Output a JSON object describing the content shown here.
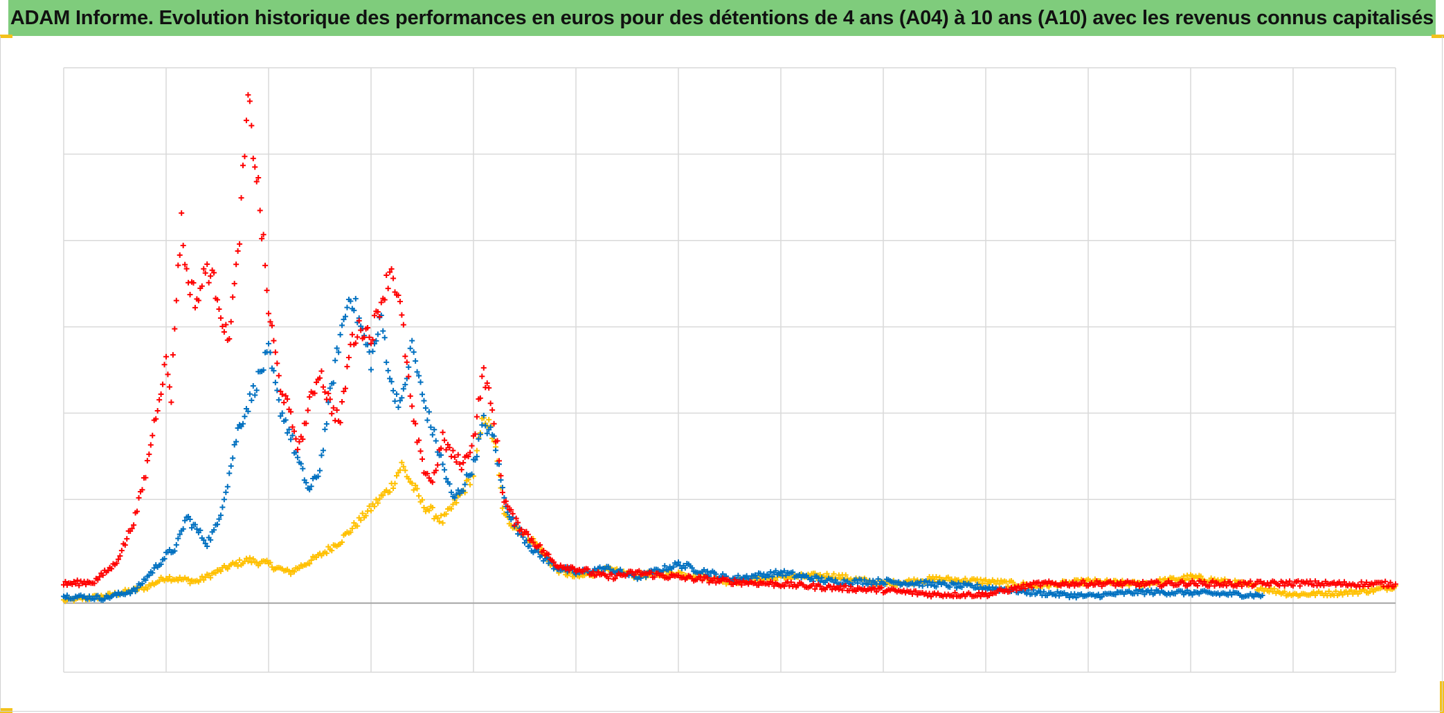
{
  "title": "ADAM Informe. Evolution historique des performances en euros pour des détentions de 4 ans (A04) à 10 ans (A10) avec les revenus connus capitalisés",
  "colors": {
    "header_bg": "#7fcc7c",
    "gridline": "#d9d9d9",
    "zero_line": "#a6a6a6",
    "corner_accent": "#f3c21b"
  },
  "chart_data": {
    "type": "scatter",
    "title": "ADAM Informe. Evolution historique des performances en euros pour des détentions de 4 ans (A04) à 10 ans (A10) avec les revenus connus capitalisés",
    "xlabel": "",
    "ylabel": "",
    "x_range": [
      0,
      13
    ],
    "y_range": [
      -0.8,
      6.2
    ],
    "x_gridlines": 13,
    "y_gridlines": [
      -0.8,
      0,
      1.2,
      2.2,
      3.2,
      4.2,
      5.2,
      6.2
    ],
    "grid": true,
    "legend": "none",
    "marker": "plus",
    "series": [
      {
        "color": "#ffc000",
        "x": [
          0,
          0.4,
          0.8,
          1.0,
          1.3,
          1.6,
          1.8,
          2.0,
          2.2,
          2.5,
          2.7,
          3.0,
          3.2,
          3.3,
          3.5,
          3.7,
          3.9,
          4.0,
          4.1,
          4.2,
          4.3,
          4.4,
          4.6,
          4.8,
          5.0,
          5.3,
          5.6,
          6.0,
          6.5,
          7.0,
          7.5,
          8.0,
          8.5,
          9.0,
          9.5,
          10.0,
          10.5,
          11.0,
          11.5,
          12.0,
          12.5,
          12.8,
          13.0
        ],
        "y": [
          0.03,
          0.08,
          0.18,
          0.3,
          0.25,
          0.42,
          0.5,
          0.45,
          0.35,
          0.55,
          0.72,
          1.1,
          1.35,
          1.6,
          1.15,
          0.95,
          1.3,
          1.5,
          2.2,
          1.9,
          1.0,
          0.9,
          0.7,
          0.4,
          0.3,
          0.38,
          0.32,
          0.35,
          0.25,
          0.3,
          0.32,
          0.22,
          0.28,
          0.25,
          0.2,
          0.25,
          0.22,
          0.3,
          0.22,
          0.1,
          0.12,
          0.15,
          0.2
        ]
      },
      {
        "color": "#0070c0",
        "x": [
          0,
          0.4,
          0.7,
          0.85,
          1.0,
          1.1,
          1.2,
          1.3,
          1.4,
          1.5,
          1.6,
          1.7,
          1.8,
          1.9,
          2.0,
          2.1,
          2.2,
          2.3,
          2.4,
          2.5,
          2.6,
          2.7,
          2.8,
          3.0,
          3.1,
          3.2,
          3.3,
          3.4,
          3.5,
          3.6,
          3.7,
          3.8,
          3.9,
          4.0,
          4.1,
          4.2,
          4.3,
          4.4,
          4.6,
          4.8,
          5.0,
          5.3,
          5.6,
          6.0,
          6.5,
          7.0,
          7.5,
          8.0,
          8.5,
          9.0,
          9.5,
          10.0,
          10.5,
          11.0,
          11.5,
          11.7
        ],
        "y": [
          0.08,
          0.06,
          0.15,
          0.35,
          0.55,
          0.65,
          1.0,
          0.85,
          0.7,
          0.9,
          1.4,
          2.0,
          2.3,
          2.6,
          2.9,
          2.3,
          2.0,
          1.6,
          1.3,
          1.55,
          2.4,
          3.1,
          3.6,
          2.8,
          3.3,
          2.5,
          2.3,
          3.0,
          2.4,
          2.0,
          1.6,
          1.2,
          1.35,
          1.6,
          2.1,
          1.9,
          1.2,
          0.9,
          0.6,
          0.42,
          0.35,
          0.4,
          0.3,
          0.45,
          0.28,
          0.35,
          0.25,
          0.25,
          0.22,
          0.18,
          0.12,
          0.08,
          0.13,
          0.12,
          0.1,
          0.09
        ]
      },
      {
        "color": "#ff0000",
        "x": [
          0,
          0.3,
          0.5,
          0.6,
          0.7,
          0.8,
          0.9,
          1.0,
          1.05,
          1.1,
          1.15,
          1.2,
          1.3,
          1.4,
          1.5,
          1.6,
          1.7,
          1.75,
          1.8,
          1.9,
          2.0,
          2.1,
          2.2,
          2.3,
          2.4,
          2.5,
          2.6,
          2.7,
          2.8,
          2.9,
          3.0,
          3.1,
          3.2,
          3.3,
          3.4,
          3.5,
          3.6,
          3.7,
          3.8,
          3.9,
          4.0,
          4.1,
          4.2,
          4.3,
          4.4,
          4.6,
          4.8,
          5.0,
          5.3,
          5.6,
          6.0,
          6.5,
          7.0,
          7.5,
          8.0,
          8.5,
          9.0,
          9.5,
          10.0,
          10.5,
          11.0,
          11.5,
          12.0,
          12.5,
          13.0
        ],
        "y": [
          0.22,
          0.25,
          0.45,
          0.7,
          1.0,
          1.5,
          2.2,
          2.8,
          2.4,
          3.6,
          4.4,
          3.8,
          3.5,
          3.9,
          3.6,
          3.0,
          4.0,
          4.9,
          5.8,
          4.8,
          3.4,
          2.6,
          2.2,
          1.8,
          2.3,
          2.7,
          2.3,
          2.1,
          3.0,
          3.2,
          3.1,
          3.5,
          3.9,
          3.3,
          2.2,
          1.6,
          1.4,
          1.9,
          1.7,
          1.6,
          1.9,
          2.7,
          2.1,
          1.2,
          0.95,
          0.7,
          0.45,
          0.4,
          0.3,
          0.35,
          0.3,
          0.25,
          0.22,
          0.18,
          0.15,
          0.1,
          0.1,
          0.22,
          0.23,
          0.22,
          0.23,
          0.22,
          0.23,
          0.22,
          0.22
        ]
      }
    ]
  }
}
